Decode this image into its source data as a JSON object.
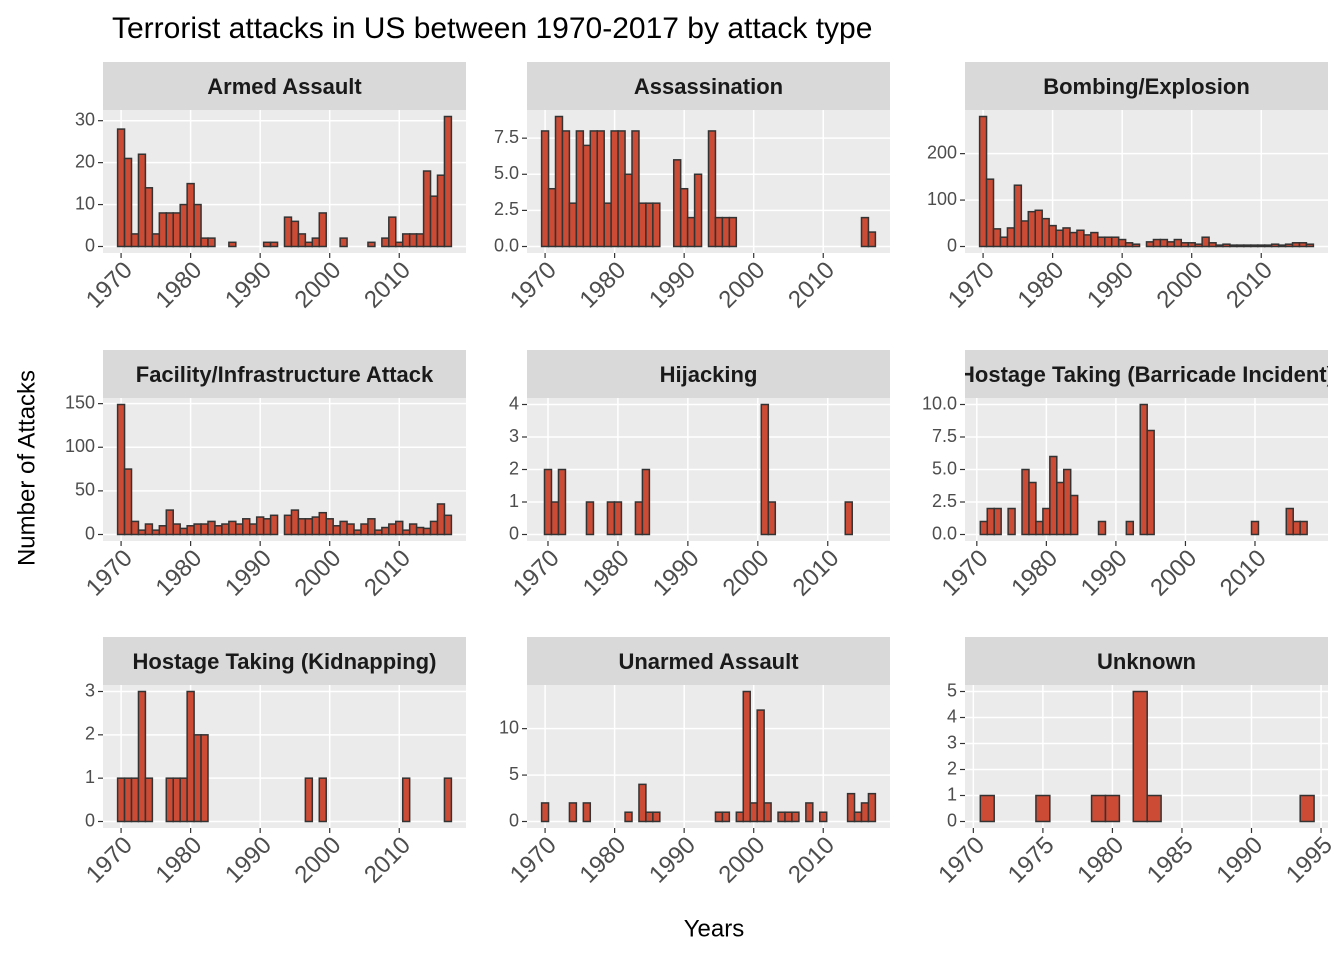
{
  "title": "Terrorist attacks in US between 1970-2017 by attack type",
  "x_label": "Years",
  "y_label": "Number of Attacks",
  "chart_data": [
    {
      "type": "bar",
      "title": "Armed Assault",
      "color": "#cb4b35",
      "edge_color": "#333333",
      "x": [
        1970,
        1971,
        1972,
        1973,
        1974,
        1975,
        1976,
        1977,
        1978,
        1979,
        1980,
        1981,
        1982,
        1983,
        1986,
        1991,
        1992,
        1994,
        1995,
        1996,
        1997,
        1998,
        1999,
        2002,
        2006,
        2008,
        2009,
        2010,
        2011,
        2012,
        2013,
        2014,
        2015,
        2016,
        2017
      ],
      "values": [
        28,
        21,
        3,
        22,
        14,
        3,
        8,
        8,
        8,
        10,
        15,
        10,
        2,
        2,
        1,
        1,
        1,
        7,
        6,
        3,
        1,
        2,
        8,
        2,
        1,
        2,
        7,
        1,
        3,
        3,
        3,
        18,
        12,
        17,
        31
      ],
      "xlim": [
        1967.4,
        2019.6
      ],
      "xticks": [
        1970,
        1980,
        1990,
        2000,
        2010
      ],
      "ylim": [
        -1.55,
        32.55
      ],
      "yticks": [
        0,
        10,
        20,
        30
      ],
      "grid": true
    },
    {
      "type": "bar",
      "title": "Assassination",
      "color": "#cb4b35",
      "edge_color": "#333333",
      "x": [
        1970,
        1971,
        1972,
        1973,
        1974,
        1975,
        1976,
        1977,
        1978,
        1979,
        1980,
        1981,
        1982,
        1983,
        1984,
        1985,
        1986,
        1989,
        1990,
        1991,
        1992,
        1994,
        1995,
        1996,
        1997,
        2016,
        2017
      ],
      "values": [
        8,
        4,
        9,
        8,
        3,
        8,
        7,
        8,
        8,
        3,
        8,
        8,
        5,
        8,
        3,
        3,
        3,
        6,
        4,
        2,
        5,
        8,
        2,
        2,
        2,
        2,
        1
      ],
      "xlim": [
        1967.4,
        2019.6
      ],
      "xticks": [
        1970,
        1980,
        1990,
        2000,
        2010
      ],
      "ylim": [
        -0.45,
        9.45
      ],
      "yticks": [
        {
          "value": 0,
          "label": "0.0"
        },
        2.5,
        {
          "value": 5,
          "label": "5.0"
        },
        7.5
      ],
      "grid": true
    },
    {
      "type": "bar",
      "title": "Bombing/Explosion",
      "color": "#cb4b35",
      "edge_color": "#333333",
      "x": [
        1970,
        1971,
        1972,
        1973,
        1974,
        1975,
        1976,
        1977,
        1978,
        1979,
        1980,
        1981,
        1982,
        1983,
        1984,
        1985,
        1986,
        1987,
        1988,
        1989,
        1990,
        1991,
        1992,
        1994,
        1995,
        1996,
        1997,
        1998,
        1999,
        2000,
        2001,
        2002,
        2003,
        2004,
        2005,
        2006,
        2007,
        2008,
        2009,
        2010,
        2011,
        2012,
        2013,
        2014,
        2015,
        2016,
        2017
      ],
      "values": [
        280,
        145,
        38,
        20,
        40,
        132,
        55,
        75,
        78,
        60,
        45,
        35,
        40,
        30,
        35,
        25,
        30,
        20,
        20,
        20,
        15,
        8,
        5,
        10,
        15,
        15,
        10,
        15,
        8,
        8,
        5,
        20,
        8,
        3,
        5,
        3,
        3,
        3,
        3,
        3,
        3,
        5,
        3,
        5,
        8,
        8,
        5
      ],
      "xlim": [
        1967.4,
        2019.6
      ],
      "xticks": [
        1970,
        1980,
        1990,
        2000,
        2010
      ],
      "ylim": [
        -14,
        294
      ],
      "yticks": [
        0,
        100,
        200
      ],
      "grid": true
    },
    {
      "type": "bar",
      "title": "Facility/Infrastructure Attack",
      "color": "#cb4b35",
      "edge_color": "#333333",
      "x": [
        1970,
        1971,
        1972,
        1973,
        1974,
        1975,
        1976,
        1977,
        1978,
        1979,
        1980,
        1981,
        1982,
        1983,
        1984,
        1985,
        1986,
        1987,
        1988,
        1989,
        1990,
        1991,
        1992,
        1994,
        1995,
        1996,
        1997,
        1998,
        1999,
        2000,
        2001,
        2002,
        2003,
        2004,
        2005,
        2006,
        2007,
        2008,
        2009,
        2010,
        2011,
        2012,
        2013,
        2014,
        2015,
        2016,
        2017
      ],
      "values": [
        149,
        75,
        15,
        5,
        12,
        5,
        10,
        28,
        12,
        7,
        10,
        12,
        12,
        15,
        10,
        12,
        15,
        12,
        18,
        12,
        20,
        18,
        22,
        22,
        28,
        18,
        18,
        20,
        25,
        18,
        10,
        15,
        12,
        5,
        12,
        18,
        5,
        8,
        12,
        15,
        5,
        12,
        8,
        7,
        15,
        35,
        22
      ],
      "xlim": [
        1967.4,
        2019.6
      ],
      "xticks": [
        1970,
        1980,
        1990,
        2000,
        2010
      ],
      "ylim": [
        -7.45,
        156.45
      ],
      "yticks": [
        0,
        50,
        100,
        150
      ],
      "grid": true
    },
    {
      "type": "bar",
      "title": "Hijacking",
      "color": "#cb4b35",
      "edge_color": "#333333",
      "x": [
        1970,
        1971,
        1972,
        1976,
        1979,
        1980,
        1983,
        1984,
        2001,
        2002,
        2013
      ],
      "values": [
        2,
        1,
        2,
        1,
        1,
        1,
        1,
        2,
        4,
        1,
        1
      ],
      "xlim": [
        1967,
        2018.9
      ],
      "xticks": [
        1970,
        1980,
        1990,
        2000,
        2010
      ],
      "ylim": [
        -0.2,
        4.2
      ],
      "yticks": [
        0,
        1,
        2,
        3,
        4
      ],
      "grid": true
    },
    {
      "type": "bar",
      "title": "Hostage Taking (Barricade Incident)",
      "color": "#cb4b35",
      "edge_color": "#333333",
      "x": [
        1971,
        1972,
        1973,
        1975,
        1977,
        1978,
        1979,
        1980,
        1981,
        1982,
        1983,
        1984,
        1988,
        1992,
        1994,
        1995,
        2010,
        2015,
        2016,
        2017
      ],
      "values": [
        1,
        2,
        2,
        2,
        5,
        4,
        1,
        2,
        6,
        4,
        5,
        3,
        1,
        1,
        10,
        8,
        1,
        2,
        1,
        1
      ],
      "xlim": [
        1968.3,
        2020.5
      ],
      "xticks": [
        1970,
        1980,
        1990,
        2000,
        2010
      ],
      "ylim": [
        -0.5,
        10.5
      ],
      "yticks": [
        {
          "value": 0,
          "label": "0.0"
        },
        2.5,
        {
          "value": 5,
          "label": "5.0"
        },
        7.5,
        {
          "value": 10,
          "label": "10.0"
        }
      ],
      "grid": true
    },
    {
      "type": "bar",
      "title": "Hostage Taking (Kidnapping)",
      "color": "#cb4b35",
      "edge_color": "#333333",
      "x": [
        1970,
        1971,
        1972,
        1973,
        1974,
        1977,
        1978,
        1979,
        1980,
        1981,
        1982,
        1997,
        1999,
        2011,
        2017
      ],
      "values": [
        1,
        1,
        1,
        3,
        1,
        1,
        1,
        1,
        3,
        2,
        2,
        1,
        1,
        1,
        1
      ],
      "xlim": [
        1967.4,
        2019.6
      ],
      "xticks": [
        1970,
        1980,
        1990,
        2000,
        2010
      ],
      "ylim": [
        -0.15,
        3.15
      ],
      "yticks": [
        0,
        1,
        2,
        3
      ],
      "grid": true
    },
    {
      "type": "bar",
      "title": "Unarmed Assault",
      "color": "#cb4b35",
      "edge_color": "#333333",
      "x": [
        1970,
        1974,
        1976,
        1982,
        1984,
        1985,
        1986,
        1995,
        1996,
        1998,
        1999,
        2000,
        2001,
        2002,
        2004,
        2005,
        2006,
        2008,
        2010,
        2014,
        2015,
        2016,
        2017
      ],
      "values": [
        2,
        2,
        2,
        1,
        4,
        1,
        1,
        1,
        1,
        1,
        14,
        2,
        12,
        2,
        1,
        1,
        1,
        2,
        1,
        3,
        1,
        2,
        3
      ],
      "xlim": [
        1967.4,
        2019.6
      ],
      "xticks": [
        1970,
        1980,
        1990,
        2000,
        2010
      ],
      "ylim": [
        -0.7,
        14.7
      ],
      "yticks": [
        0,
        5,
        10
      ],
      "grid": true
    },
    {
      "type": "bar",
      "title": "Unknown",
      "color": "#cb4b35",
      "edge_color": "#333333",
      "x": [
        1971,
        1975,
        1979,
        1980,
        1982,
        1983,
        1994
      ],
      "values": [
        1,
        1,
        1,
        1,
        5,
        1,
        1
      ],
      "xlim": [
        1969.4,
        1995.5
      ],
      "xticks": [
        1970,
        1975,
        1980,
        1985,
        1990,
        1995
      ],
      "ylim": [
        -0.25,
        5.25
      ],
      "yticks": [
        0,
        1,
        2,
        3,
        4,
        5
      ],
      "grid": true
    }
  ]
}
